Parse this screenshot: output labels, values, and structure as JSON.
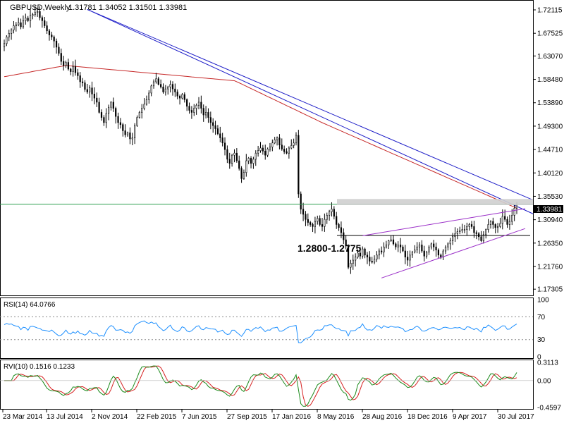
{
  "header": {
    "symbol_tf": "GBPUSD,Weekly",
    "ohlc": "1.31781 1.34052 1.31501 1.33981"
  },
  "annotation": "1.2800-1.2775",
  "colors": {
    "bull": "#000000",
    "bear": "#000000",
    "ma": "#c62828",
    "trend": "#1e1ec8",
    "channel": "#9b30c8",
    "hline_green": "#2e9e4f",
    "rsi": "#1e90ff",
    "rvi_main": "#1a8a1a",
    "rvi_signal": "#d62020"
  },
  "chart_data": [
    {
      "type": "line",
      "name": "price",
      "title": "GBPUSD,Weekly",
      "x_ticks": [
        "23 Mar 2014",
        "13 Jul 2014",
        "2 Nov 2014",
        "22 Feb 2015",
        "7 Jun 2015",
        "27 Sep 2015",
        "17 Jan 2016",
        "8 May 2016",
        "28 Aug 2016",
        "18 Dec 2016",
        "9 Apr 2017",
        "30 Jul 2017"
      ],
      "y_ticks": [
        "1.72115",
        "1.67525",
        "1.63070",
        "1.58480",
        "1.53890",
        "1.49300",
        "1.44710",
        "1.40120",
        "1.35530",
        "1.30940",
        "1.26350",
        "1.21760",
        "1.17305"
      ],
      "ylim": [
        1.165,
        1.735
      ],
      "current_price": "1.33981",
      "closes": [
        1.655,
        1.668,
        1.675,
        1.682,
        1.69,
        1.692,
        1.696,
        1.688,
        1.7,
        1.705,
        1.7,
        1.71,
        1.712,
        1.716,
        1.718,
        1.706,
        1.7,
        1.69,
        1.68,
        1.672,
        1.668,
        1.66,
        1.648,
        1.636,
        1.62,
        1.612,
        1.618,
        1.605,
        1.6,
        1.61,
        1.598,
        1.592,
        1.58,
        1.578,
        1.565,
        1.56,
        1.568,
        1.556,
        1.548,
        1.54,
        1.52,
        1.51,
        1.5,
        1.518,
        1.53,
        1.54,
        1.528,
        1.512,
        1.5,
        1.496,
        1.484,
        1.476,
        1.48,
        1.468,
        1.47,
        1.494,
        1.51,
        1.52,
        1.528,
        1.536,
        1.545,
        1.558,
        1.572,
        1.58,
        1.586,
        1.575,
        1.57,
        1.56,
        1.566,
        1.57,
        1.575,
        1.566,
        1.56,
        1.552,
        1.548,
        1.555,
        1.545,
        1.532,
        1.524,
        1.52,
        1.528,
        1.534,
        1.54,
        1.528,
        1.515,
        1.52,
        1.51,
        1.5,
        1.494,
        1.488,
        1.478,
        1.47,
        1.46,
        1.447,
        1.428,
        1.42,
        1.436,
        1.44,
        1.425,
        1.41,
        1.39,
        1.402,
        1.425,
        1.43,
        1.42,
        1.428,
        1.44,
        1.445,
        1.45,
        1.444,
        1.436,
        1.448,
        1.452,
        1.46,
        1.466,
        1.47,
        1.456,
        1.448,
        1.443,
        1.44,
        1.45,
        1.455,
        1.46,
        1.475,
        1.36,
        1.33,
        1.32,
        1.31,
        1.304,
        1.3,
        1.296,
        1.306,
        1.312,
        1.3,
        1.296,
        1.31,
        1.318,
        1.325,
        1.33,
        1.316,
        1.3,
        1.294,
        1.284,
        1.27,
        1.258,
        1.216,
        1.224,
        1.23,
        1.236,
        1.244,
        1.238,
        1.252,
        1.24,
        1.236,
        1.228,
        1.226,
        1.232,
        1.24,
        1.248,
        1.246,
        1.256,
        1.26,
        1.268,
        1.27,
        1.262,
        1.256,
        1.26,
        1.256,
        1.248,
        1.236,
        1.23,
        1.24,
        1.246,
        1.25,
        1.256,
        1.26,
        1.248,
        1.238,
        1.246,
        1.256,
        1.262,
        1.256,
        1.25,
        1.24,
        1.236,
        1.248,
        1.256,
        1.262,
        1.268,
        1.276,
        1.282,
        1.286,
        1.288,
        1.29,
        1.29,
        1.296,
        1.3,
        1.296,
        1.284,
        1.282,
        1.276,
        1.268,
        1.28,
        1.29,
        1.3,
        1.306,
        1.3,
        1.294,
        1.296,
        1.302,
        1.316,
        1.31,
        1.3,
        1.306,
        1.318,
        1.332,
        1.34
      ]
    },
    {
      "type": "line",
      "name": "RSI",
      "title": "RSI(14) 64.0766",
      "y_ticks": [
        "100",
        "70",
        "30",
        "0"
      ],
      "ylim": [
        0,
        100
      ],
      "levels": [
        70,
        30
      ]
    },
    {
      "type": "line",
      "name": "RVI",
      "title": "RVI(10) 0.1516 0.1233",
      "y_ticks": [
        "0.3113",
        "0.00",
        "-0.4597"
      ],
      "ylim": [
        -0.4597,
        0.3113
      ]
    }
  ]
}
